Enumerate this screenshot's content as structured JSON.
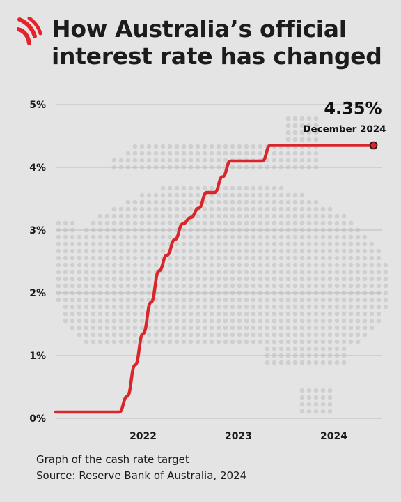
{
  "header": {
    "title_line1": "How Australia’s official",
    "title_line2": "interest rate has changed",
    "logo_icon": "sbs-logo-icon",
    "logo_color": "#e2242c"
  },
  "chart_data": {
    "type": "line",
    "title": "How Australia’s official interest rate has changed",
    "xlabel": "",
    "ylabel": "",
    "x_ticks": [
      "2022",
      "2023",
      "2024"
    ],
    "y_ticks": [
      "0%",
      "1%",
      "2%",
      "3%",
      "4%",
      "5%"
    ],
    "y_tick_values": [
      0,
      1,
      2,
      3,
      4,
      5
    ],
    "ylim": [
      0,
      5
    ],
    "xlim": [
      "2021-08",
      "2025-01"
    ],
    "grid": true,
    "line_color": "#d9262b",
    "series": [
      {
        "x": [
          "2021-08",
          "2021-09",
          "2021-10",
          "2021-11",
          "2021-12",
          "2022-01",
          "2022-02",
          "2022-03",
          "2022-04",
          "2022-05",
          "2022-06",
          "2022-07",
          "2022-08",
          "2022-09",
          "2022-10",
          "2022-11",
          "2022-12",
          "2023-01",
          "2023-02",
          "2023-03",
          "2023-04",
          "2023-05",
          "2023-06",
          "2023-07",
          "2023-08",
          "2023-09",
          "2023-10",
          "2023-11",
          "2023-12",
          "2024-01",
          "2024-02",
          "2024-03",
          "2024-04",
          "2024-05",
          "2024-06",
          "2024-07",
          "2024-08",
          "2024-09",
          "2024-10",
          "2024-11",
          "2024-12"
        ],
        "values": [
          0.1,
          0.1,
          0.1,
          0.1,
          0.1,
          0.1,
          0.1,
          0.1,
          0.1,
          0.35,
          0.85,
          1.35,
          1.85,
          2.35,
          2.6,
          2.85,
          3.1,
          3.2,
          3.35,
          3.6,
          3.6,
          3.85,
          4.1,
          4.1,
          4.1,
          4.1,
          4.1,
          4.35,
          4.35,
          4.35,
          4.35,
          4.35,
          4.35,
          4.35,
          4.35,
          4.35,
          4.35,
          4.35,
          4.35,
          4.35,
          4.35
        ]
      }
    ],
    "annotation": {
      "value": "4.35%",
      "date": "December 2024"
    }
  },
  "caption": {
    "line1": "Graph of the cash rate target",
    "line2": "Source: Reserve Bank of Australia, 2024"
  }
}
